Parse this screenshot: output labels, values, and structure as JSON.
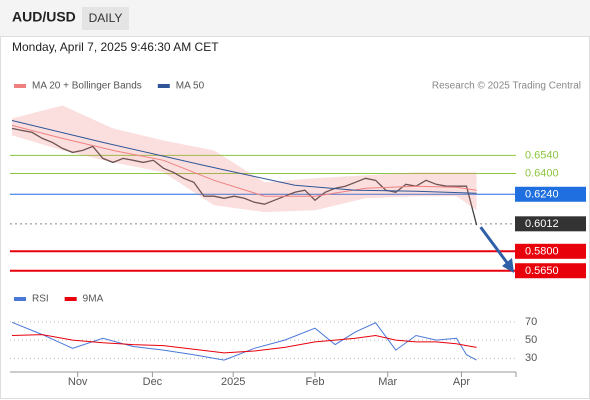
{
  "header": {
    "symbol": "AUD/USD",
    "timeframe": "DAILY",
    "date": "Monday, April 7, 2025 9:46:30 AM CET"
  },
  "chart_data": [
    {
      "type": "line",
      "source": "Research © 2025 Trading Central",
      "xlim": [
        -0.2,
        49.9
      ],
      "ylim": [
        0.554,
        0.689
      ],
      "series": [
        {
          "color": "#444444",
          "x": [
            0,
            1,
            2,
            3,
            4,
            5,
            6,
            7,
            8,
            9,
            10,
            11,
            12,
            13,
            14,
            15,
            16,
            17,
            18,
            19,
            20,
            21,
            22,
            23,
            24,
            25,
            26,
            27,
            28,
            29,
            30,
            31,
            32,
            33,
            34,
            35,
            36,
            37,
            38,
            39,
            40,
            41,
            42,
            43,
            44,
            45,
            46
          ],
          "values": [
            0.6748,
            0.6732,
            0.6717,
            0.6671,
            0.664,
            0.6594,
            0.6563,
            0.6578,
            0.6609,
            0.6517,
            0.6486,
            0.6517,
            0.6502,
            0.6486,
            0.6502,
            0.644,
            0.6409,
            0.6363,
            0.6332,
            0.6225,
            0.6225,
            0.6209,
            0.6225,
            0.6209,
            0.6178,
            0.6163,
            0.6194,
            0.6225,
            0.6255,
            0.6271,
            0.6194,
            0.6255,
            0.6286,
            0.6302,
            0.6332,
            0.6363,
            0.6348,
            0.6271,
            0.6255,
            0.6317,
            0.6302,
            0.6348,
            0.6317,
            0.6302,
            0.6302,
            0.6302,
            0.6002
          ]
        },
        {
          "name": "MA 20 + Bollinger Bands",
          "color": "#f08080",
          "x": [
            0,
            5,
            10,
            15,
            20,
            25,
            30,
            35,
            40,
            44,
            46
          ],
          "values": [
            0.6771,
            0.6671,
            0.6578,
            0.6502,
            0.6348,
            0.6225,
            0.6225,
            0.6286,
            0.6302,
            0.6294,
            0.6271
          ],
          "upper": [
            0.6825,
            0.6925,
            0.6748,
            0.6655,
            0.6578,
            0.6332,
            0.6363,
            0.6386,
            0.6409,
            0.6409,
            0.6409
          ],
          "lower": [
            0.6694,
            0.6578,
            0.6486,
            0.6409,
            0.6155,
            0.6102,
            0.6117,
            0.6209,
            0.6225,
            0.6225,
            0.6117
          ]
        },
        {
          "name": "MA 50",
          "color": "#2f5597",
          "x": [
            0,
            9,
            19,
            28,
            34,
            40,
            46
          ],
          "values": [
            0.6809,
            0.664,
            0.6463,
            0.6309,
            0.6271,
            0.6263,
            0.6248
          ]
        }
      ],
      "levels": [
        {
          "value": 0.654,
          "label": "0.6540",
          "color": "#8cc63f",
          "boxed": false
        },
        {
          "value": 0.64,
          "label": "0.6400",
          "color": "#8cc63f",
          "boxed": false
        },
        {
          "value": 0.624,
          "label": "0.6240",
          "color": "#1f6fe0",
          "boxed": true
        },
        {
          "value": 0.6012,
          "label": "0.6012",
          "color": "#333333",
          "boxed": true
        },
        {
          "value": 0.58,
          "label": "0.5800",
          "color": "#e8000b",
          "boxed": true
        },
        {
          "value": 0.565,
          "label": "0.5650",
          "color": "#e8000b",
          "boxed": true
        }
      ]
    },
    {
      "type": "line",
      "xlim": [
        -0.2,
        49.9
      ],
      "ylim": [
        15,
        83
      ],
      "yticks": [
        30,
        50,
        70
      ],
      "grid": true,
      "xticks": [
        {
          "value": 6.5,
          "label": "Nov"
        },
        {
          "value": 13.9,
          "label": "Dec"
        },
        {
          "value": 21.9,
          "label": "2025"
        },
        {
          "value": 30,
          "label": "Feb"
        },
        {
          "value": 37.2,
          "label": "Mar"
        },
        {
          "value": 44.5,
          "label": "Apr"
        }
      ],
      "series": [
        {
          "name": "RSI",
          "color": "#4a78d8",
          "x": [
            0,
            3,
            6,
            9,
            12,
            15,
            18,
            21,
            24,
            27,
            30,
            32,
            34,
            36,
            38,
            40,
            42,
            44,
            45,
            46
          ],
          "values": [
            69.5,
            56,
            41,
            52,
            43,
            39,
            34,
            28,
            41,
            50,
            63,
            45,
            59,
            69,
            39,
            55,
            50,
            52,
            34,
            28
          ]
        },
        {
          "name": "9MA",
          "color": "#e8000b",
          "x": [
            0,
            3,
            6,
            9,
            12,
            15,
            18,
            21,
            24,
            27,
            30,
            32,
            34,
            36,
            38,
            40,
            42,
            44,
            45,
            46
          ],
          "values": [
            55,
            56,
            50,
            47,
            45,
            44,
            40,
            36,
            38,
            42,
            48,
            50,
            52,
            55,
            50,
            48,
            48,
            46,
            44,
            42
          ]
        }
      ]
    }
  ]
}
